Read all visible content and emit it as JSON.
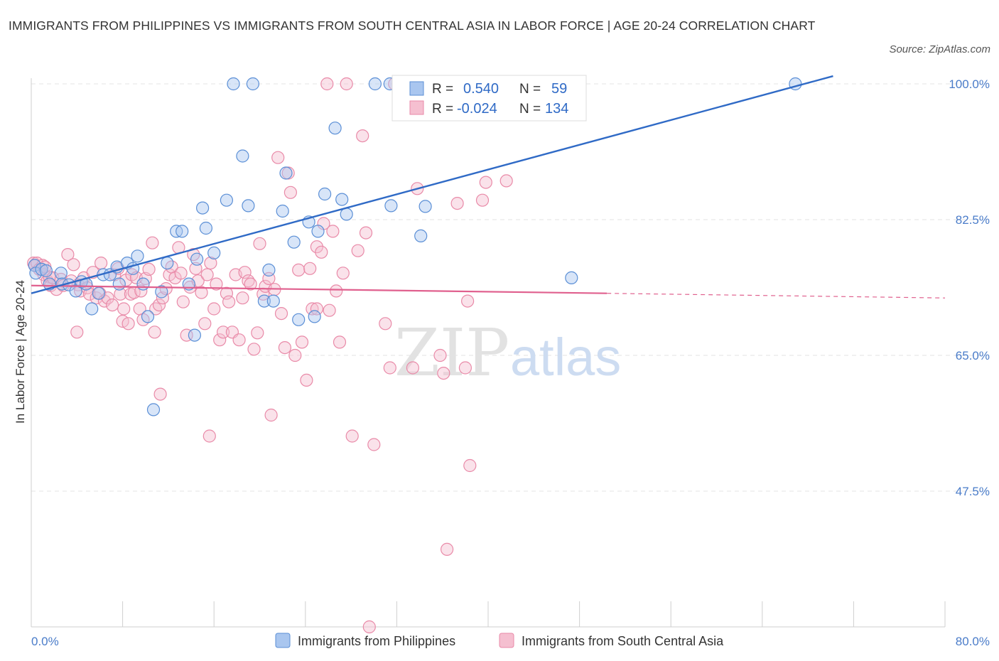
{
  "title": "IMMIGRANTS FROM PHILIPPINES VS IMMIGRANTS FROM SOUTH CENTRAL ASIA IN LABOR FORCE | AGE 20-24 CORRELATION CHART",
  "source": "Source: ZipAtlas.com",
  "colors": {
    "blue": "#5b8fd6",
    "blue_fill": "#a9c6ef",
    "blue_line": "#2f6ac6",
    "pink": "#e98aa8",
    "pink_fill": "#f5bfd0",
    "pink_line": "#e0608e",
    "tick": "#4a7cc9"
  },
  "watermark": {
    "zip": "ZIP",
    "atlas": "atlas"
  },
  "legend": {
    "r_label": "R =",
    "n_label": "N =",
    "blue": {
      "r": "0.540",
      "n": "59"
    },
    "pink": {
      "r": "-0.024",
      "n": "134"
    }
  },
  "chart_data": {
    "type": "scatter",
    "title": "IMMIGRANTS FROM PHILIPPINES VS IMMIGRANTS FROM SOUTH CENTRAL ASIA IN LABOR FORCE | AGE 20-24 CORRELATION CHART",
    "xlabel": "",
    "ylabel": "In Labor Force | Age 20-24",
    "xlim": [
      0,
      80
    ],
    "ylim": [
      30,
      101
    ],
    "x_tick_labels": [
      "0.0%",
      "80.0%"
    ],
    "y_ticks": [
      47.5,
      65.0,
      82.5,
      100.0
    ],
    "y_tick_labels": [
      "47.5%",
      "65.0%",
      "82.5%",
      "100.0%"
    ],
    "grid": true,
    "legend_position": "top-center",
    "series": [
      {
        "name": "Immigrants from Philippines",
        "r": 0.54,
        "n": 59,
        "trend": {
          "x": [
            0,
            70.2
          ],
          "y": [
            73.0,
            101.0
          ]
        },
        "points": [
          [
            0.3,
            76.6
          ],
          [
            0.4,
            75.6
          ],
          [
            0.9,
            76.1
          ],
          [
            1.3,
            75.9
          ],
          [
            1.6,
            74.2
          ],
          [
            2.6,
            75.6
          ],
          [
            2.7,
            74.2
          ],
          [
            3.3,
            74.1
          ],
          [
            3.9,
            73.3
          ],
          [
            4.4,
            74.5
          ],
          [
            4.8,
            74.2
          ],
          [
            5.3,
            71.0
          ],
          [
            5.9,
            73.0
          ],
          [
            6.3,
            75.4
          ],
          [
            6.9,
            75.4
          ],
          [
            7.5,
            76.4
          ],
          [
            7.7,
            74.2
          ],
          [
            8.4,
            76.9
          ],
          [
            8.9,
            76.2
          ],
          [
            9.3,
            77.8
          ],
          [
            9.8,
            74.2
          ],
          [
            10.2,
            70.0
          ],
          [
            10.7,
            58.0
          ],
          [
            11.4,
            73.2
          ],
          [
            11.9,
            76.9
          ],
          [
            12.7,
            81.0
          ],
          [
            13.2,
            81.0
          ],
          [
            13.8,
            74.2
          ],
          [
            14.3,
            67.6
          ],
          [
            14.5,
            77.4
          ],
          [
            15.0,
            84.0
          ],
          [
            15.3,
            81.4
          ],
          [
            16.0,
            78.2
          ],
          [
            17.1,
            85.0
          ],
          [
            17.7,
            100.0
          ],
          [
            18.5,
            90.7
          ],
          [
            19.0,
            84.3
          ],
          [
            19.4,
            100.0
          ],
          [
            20.4,
            72.0
          ],
          [
            20.8,
            76.0
          ],
          [
            21.2,
            72.0
          ],
          [
            22.0,
            83.6
          ],
          [
            22.3,
            88.5
          ],
          [
            23.0,
            79.6
          ],
          [
            23.4,
            69.6
          ],
          [
            24.3,
            82.2
          ],
          [
            24.8,
            70.0
          ],
          [
            25.1,
            81.0
          ],
          [
            25.7,
            85.8
          ],
          [
            26.6,
            94.3
          ],
          [
            27.2,
            85.1
          ],
          [
            27.6,
            83.2
          ],
          [
            30.1,
            100.0
          ],
          [
            31.4,
            100.0
          ],
          [
            31.5,
            84.3
          ],
          [
            34.1,
            80.4
          ],
          [
            34.5,
            84.2
          ],
          [
            47.3,
            75.0
          ],
          [
            66.9,
            100.0
          ]
        ]
      },
      {
        "name": "Immigrants from South Central Asia",
        "r": -0.024,
        "n": 134,
        "trend": {
          "x": [
            0,
            50.4
          ],
          "y": [
            74.0,
            73.0
          ]
        },
        "trend_dashed": {
          "x": [
            50.4,
            80
          ],
          "y": [
            73.0,
            72.4
          ]
        },
        "points": [
          [
            0.2,
            76.9
          ],
          [
            0.3,
            76.6
          ],
          [
            0.5,
            76.9
          ],
          [
            0.7,
            76.1
          ],
          [
            1.0,
            76.6
          ],
          [
            1.1,
            75.4
          ],
          [
            1.2,
            76.4
          ],
          [
            1.4,
            74.6
          ],
          [
            1.6,
            75.1
          ],
          [
            1.7,
            74.0
          ],
          [
            1.9,
            75.0
          ],
          [
            2.2,
            73.5
          ],
          [
            2.6,
            74.8
          ],
          [
            2.8,
            74.0
          ],
          [
            3.2,
            78.0
          ],
          [
            3.5,
            74.6
          ],
          [
            3.7,
            76.7
          ],
          [
            4.1,
            74.1
          ],
          [
            4.3,
            73.3
          ],
          [
            4.6,
            75.0
          ],
          [
            4.9,
            73.7
          ],
          [
            5.1,
            72.9
          ],
          [
            5.4,
            75.7
          ],
          [
            5.7,
            72.4
          ],
          [
            6.0,
            73.0
          ],
          [
            6.1,
            76.9
          ],
          [
            6.4,
            72.0
          ],
          [
            6.7,
            72.4
          ],
          [
            7.1,
            71.5
          ],
          [
            7.3,
            75.4
          ],
          [
            7.6,
            76.2
          ],
          [
            7.8,
            72.9
          ],
          [
            8.0,
            69.4
          ],
          [
            8.1,
            71.0
          ],
          [
            8.3,
            74.7
          ],
          [
            8.5,
            69.1
          ],
          [
            8.7,
            72.9
          ],
          [
            8.8,
            75.4
          ],
          [
            9.0,
            73.1
          ],
          [
            9.2,
            75.0
          ],
          [
            9.5,
            71.0
          ],
          [
            9.6,
            73.3
          ],
          [
            9.8,
            69.6
          ],
          [
            10.0,
            74.9
          ],
          [
            10.3,
            76.1
          ],
          [
            10.6,
            79.5
          ],
          [
            10.8,
            68.0
          ],
          [
            10.9,
            71.0
          ],
          [
            11.2,
            71.5
          ],
          [
            11.5,
            72.4
          ],
          [
            11.8,
            73.6
          ],
          [
            12.1,
            75.4
          ],
          [
            12.3,
            76.4
          ],
          [
            12.6,
            75.0
          ],
          [
            12.9,
            78.9
          ],
          [
            13.1,
            75.6
          ],
          [
            13.3,
            71.9
          ],
          [
            13.6,
            67.6
          ],
          [
            13.9,
            73.8
          ],
          [
            14.2,
            78.0
          ],
          [
            14.4,
            76.2
          ],
          [
            14.6,
            74.6
          ],
          [
            14.9,
            73.1
          ],
          [
            15.2,
            69.1
          ],
          [
            15.4,
            75.4
          ],
          [
            15.7,
            76.9
          ],
          [
            16.0,
            71.0
          ],
          [
            16.2,
            74.2
          ],
          [
            16.5,
            67.0
          ],
          [
            16.8,
            68.0
          ],
          [
            17.1,
            73.0
          ],
          [
            17.3,
            71.9
          ],
          [
            17.6,
            68.0
          ],
          [
            17.9,
            75.4
          ],
          [
            18.2,
            67.0
          ],
          [
            18.5,
            72.4
          ],
          [
            18.7,
            75.7
          ],
          [
            19.0,
            74.6
          ],
          [
            19.2,
            74.2
          ],
          [
            19.5,
            65.8
          ],
          [
            19.8,
            67.9
          ],
          [
            20.0,
            79.4
          ],
          [
            20.3,
            72.9
          ],
          [
            20.5,
            73.9
          ],
          [
            20.8,
            74.9
          ],
          [
            21.0,
            57.3
          ],
          [
            21.3,
            73.5
          ],
          [
            21.6,
            90.5
          ],
          [
            21.9,
            70.4
          ],
          [
            22.2,
            66.0
          ],
          [
            22.5,
            88.5
          ],
          [
            22.7,
            86.0
          ],
          [
            23.1,
            65.0
          ],
          [
            23.4,
            76.0
          ],
          [
            23.7,
            66.7
          ],
          [
            24.1,
            61.8
          ],
          [
            24.4,
            76.2
          ],
          [
            24.6,
            71.0
          ],
          [
            25.0,
            79.0
          ],
          [
            25.4,
            78.3
          ],
          [
            25.6,
            82.0
          ],
          [
            25.9,
            100.0
          ],
          [
            26.1,
            70.8
          ],
          [
            26.4,
            81.0
          ],
          [
            26.7,
            73.3
          ],
          [
            27.0,
            66.7
          ],
          [
            27.3,
            75.6
          ],
          [
            27.6,
            100.0
          ],
          [
            28.1,
            54.6
          ],
          [
            28.6,
            78.5
          ],
          [
            29.0,
            93.3
          ],
          [
            29.3,
            80.8
          ],
          [
            30.0,
            53.5
          ],
          [
            31.0,
            69.1
          ],
          [
            31.4,
            63.4
          ],
          [
            31.8,
            100.0
          ],
          [
            32.3,
            100.0
          ],
          [
            33.4,
            63.4
          ],
          [
            33.8,
            86.5
          ],
          [
            35.8,
            65.0
          ],
          [
            36.1,
            62.7
          ],
          [
            36.4,
            40.0
          ],
          [
            37.3,
            84.6
          ],
          [
            38.0,
            63.4
          ],
          [
            38.2,
            72.0
          ],
          [
            38.4,
            50.8
          ],
          [
            39.5,
            85.0
          ],
          [
            39.8,
            87.3
          ],
          [
            41.6,
            87.5
          ],
          [
            29.6,
            30.0
          ],
          [
            15.6,
            54.6
          ],
          [
            11.3,
            60.0
          ],
          [
            4.0,
            68.0
          ],
          [
            25.0,
            71.0
          ]
        ]
      }
    ]
  },
  "bottom_legend": [
    "Immigrants from Philippines",
    "Immigrants from South Central Asia"
  ]
}
